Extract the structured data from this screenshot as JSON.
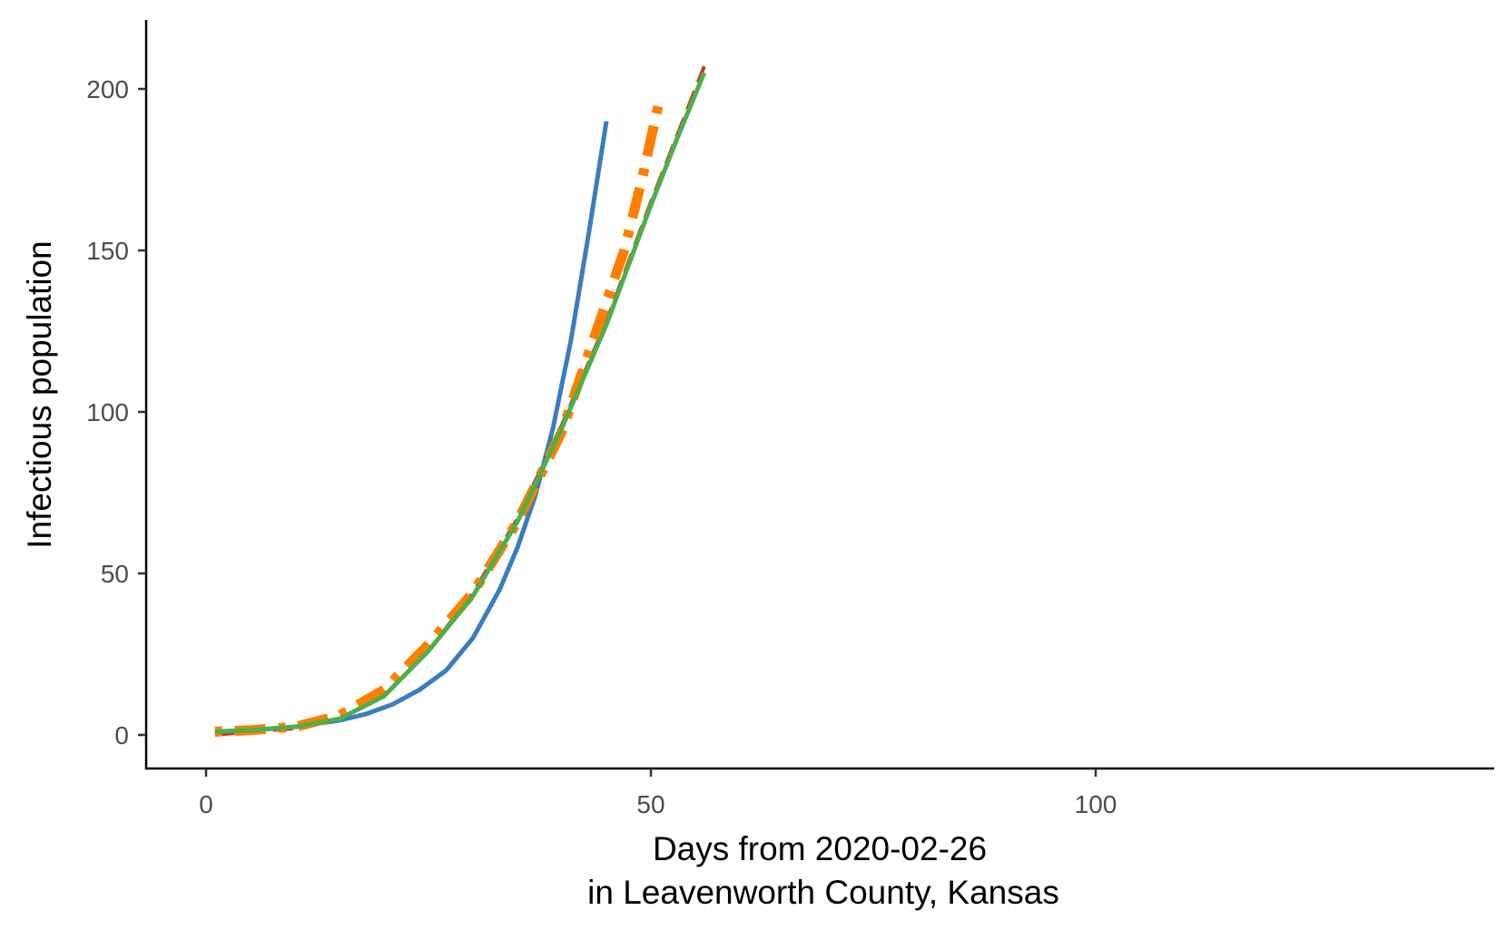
{
  "chart_data": {
    "type": "line",
    "title": "",
    "xlabel": "Days from 2020-02-26",
    "xlabel_line2": "in Leavenworth County, Kansas",
    "ylabel": "Infectious population",
    "xlim": [
      -7,
      143
    ],
    "ylim": [
      -10,
      220
    ],
    "xticks": [
      0,
      50,
      100
    ],
    "yticks": [
      0,
      50,
      100,
      150,
      200
    ],
    "grid": false,
    "legend": "none",
    "series": [
      {
        "name": "series-blue-solid",
        "color": "#3A7DBF",
        "dash": "solid",
        "x": [
          1,
          5,
          10,
          15,
          18,
          21,
          24,
          27,
          30,
          33,
          35,
          37,
          39,
          41,
          43,
          45
        ],
        "y": [
          1,
          1.5,
          2.5,
          4.5,
          6.5,
          9.5,
          14,
          20,
          30,
          45,
          58,
          74,
          95,
          122,
          155,
          190
        ]
      },
      {
        "name": "series-red-dashed",
        "color": "#D7301F",
        "dash": "dashed",
        "x": [
          1,
          5,
          10,
          15,
          20,
          25,
          30,
          35,
          40,
          45,
          50,
          53,
          56
        ],
        "y": [
          0,
          1,
          2,
          5,
          12,
          26,
          44,
          67,
          96,
          128,
          165,
          186,
          207
        ]
      },
      {
        "name": "series-orange-dotdash",
        "color": "#FF7F00",
        "dash": "dotdash",
        "x": [
          1,
          5,
          10,
          15,
          20,
          25,
          30,
          35,
          40,
          44,
          47,
          49,
          51
        ],
        "y": [
          1,
          1.5,
          2.5,
          6,
          14,
          28,
          44,
          66,
          94,
          126,
          150,
          172,
          197
        ]
      },
      {
        "name": "series-green-solid",
        "color": "#4DAF4A",
        "dash": "solid",
        "x": [
          1,
          5,
          10,
          15,
          20,
          25,
          30,
          35,
          40,
          45,
          50,
          53,
          56
        ],
        "y": [
          1,
          1.5,
          2.5,
          5,
          12,
          26,
          43,
          66,
          95,
          127,
          164,
          185,
          205
        ]
      }
    ]
  }
}
